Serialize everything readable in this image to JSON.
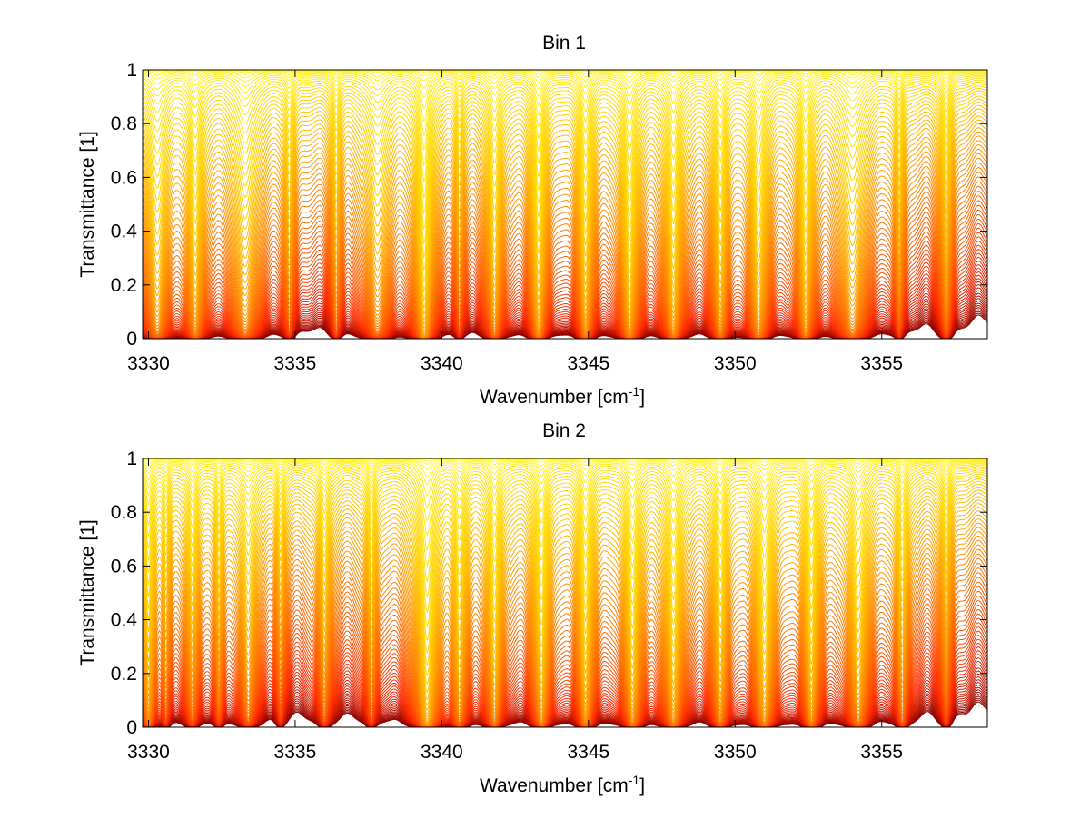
{
  "chart_data": [
    {
      "type": "line",
      "title": "Bin 1",
      "xlabel": "Wavenumber [cm",
      "xlabel_sup": "-1",
      "xlabel_tail": "]",
      "ylabel": "Transmittance [1]",
      "xlim": [
        3329.8,
        3358.6
      ],
      "ylim": [
        0,
        1
      ],
      "xticks": [
        3330,
        3335,
        3340,
        3345,
        3350,
        3355
      ],
      "yticks": [
        0,
        0.2,
        0.4,
        0.6,
        0.8,
        1
      ],
      "ytick_labels": [
        "0",
        "0.2",
        "0.4",
        "0.6",
        "0.8",
        "1"
      ],
      "grid": false,
      "legend": "none",
      "series_count": 80,
      "colormap": [
        "#8b0000",
        "#ff2a00",
        "#ff7a00",
        "#ffd000",
        "#ffff33"
      ],
      "absorption_lines": [
        {
          "center": 3330.3,
          "width": 0.25,
          "strength": 1.4
        },
        {
          "center": 3331.6,
          "width": 0.16,
          "strength": 1.6
        },
        {
          "center": 3333.3,
          "width": 0.3,
          "strength": 1.2
        },
        {
          "center": 3334.8,
          "width": 0.12,
          "strength": 0.6
        },
        {
          "center": 3336.4,
          "width": 0.1,
          "strength": 0.7
        },
        {
          "center": 3337.8,
          "width": 0.3,
          "strength": 1.0
        },
        {
          "center": 3339.4,
          "width": 0.14,
          "strength": 3.2
        },
        {
          "center": 3340.6,
          "width": 0.1,
          "strength": 0.5
        },
        {
          "center": 3341.8,
          "width": 0.16,
          "strength": 1.4
        },
        {
          "center": 3343.3,
          "width": 0.14,
          "strength": 2.0
        },
        {
          "center": 3344.9,
          "width": 0.14,
          "strength": 1.8
        },
        {
          "center": 3346.4,
          "width": 0.16,
          "strength": 2.0
        },
        {
          "center": 3347.9,
          "width": 0.16,
          "strength": 1.9
        },
        {
          "center": 3349.5,
          "width": 0.14,
          "strength": 1.6
        },
        {
          "center": 3350.8,
          "width": 0.18,
          "strength": 1.7
        },
        {
          "center": 3352.4,
          "width": 0.14,
          "strength": 1.8
        },
        {
          "center": 3354.0,
          "width": 0.3,
          "strength": 1.3
        },
        {
          "center": 3355.6,
          "width": 0.1,
          "strength": 0.7
        },
        {
          "center": 3357.2,
          "width": 0.12,
          "strength": 0.9
        }
      ]
    },
    {
      "type": "line",
      "title": "Bin 2",
      "xlabel": "Wavenumber [cm",
      "xlabel_sup": "-1",
      "xlabel_tail": "]",
      "ylabel": "Transmittance [1]",
      "xlim": [
        3329.8,
        3358.6
      ],
      "ylim": [
        0,
        1
      ],
      "xticks": [
        3330,
        3335,
        3340,
        3345,
        3350,
        3355
      ],
      "yticks": [
        0,
        0.2,
        0.4,
        0.6,
        0.8,
        1
      ],
      "ytick_labels": [
        "0",
        "0.2",
        "0.4",
        "0.6",
        "0.8",
        "1"
      ],
      "grid": false,
      "legend": "none",
      "series_count": 80,
      "colormap": [
        "#8b0000",
        "#ff2a00",
        "#ff7a00",
        "#ffd000",
        "#ffff33"
      ],
      "absorption_lines": [
        {
          "center": 3330.0,
          "width": 0.12,
          "strength": 1.6
        },
        {
          "center": 3330.6,
          "width": 0.1,
          "strength": 0.6
        },
        {
          "center": 3331.5,
          "width": 0.14,
          "strength": 0.9
        },
        {
          "center": 3332.4,
          "width": 0.1,
          "strength": 0.7
        },
        {
          "center": 3333.4,
          "width": 0.2,
          "strength": 0.9
        },
        {
          "center": 3334.5,
          "width": 0.1,
          "strength": 0.5
        },
        {
          "center": 3336.0,
          "width": 0.14,
          "strength": 0.8
        },
        {
          "center": 3337.6,
          "width": 0.12,
          "strength": 0.7
        },
        {
          "center": 3339.5,
          "width": 0.18,
          "strength": 3.0
        },
        {
          "center": 3340.6,
          "width": 0.14,
          "strength": 1.3
        },
        {
          "center": 3341.8,
          "width": 0.14,
          "strength": 1.6
        },
        {
          "center": 3343.4,
          "width": 0.14,
          "strength": 1.9
        },
        {
          "center": 3344.9,
          "width": 0.14,
          "strength": 1.8
        },
        {
          "center": 3346.5,
          "width": 0.16,
          "strength": 1.7
        },
        {
          "center": 3347.9,
          "width": 0.16,
          "strength": 1.9
        },
        {
          "center": 3349.5,
          "width": 0.14,
          "strength": 1.5
        },
        {
          "center": 3351.0,
          "width": 0.18,
          "strength": 1.8
        },
        {
          "center": 3352.6,
          "width": 0.14,
          "strength": 1.8
        },
        {
          "center": 3354.2,
          "width": 0.2,
          "strength": 1.4
        },
        {
          "center": 3355.7,
          "width": 0.12,
          "strength": 1.0
        },
        {
          "center": 3357.2,
          "width": 0.12,
          "strength": 0.6
        }
      ]
    }
  ]
}
